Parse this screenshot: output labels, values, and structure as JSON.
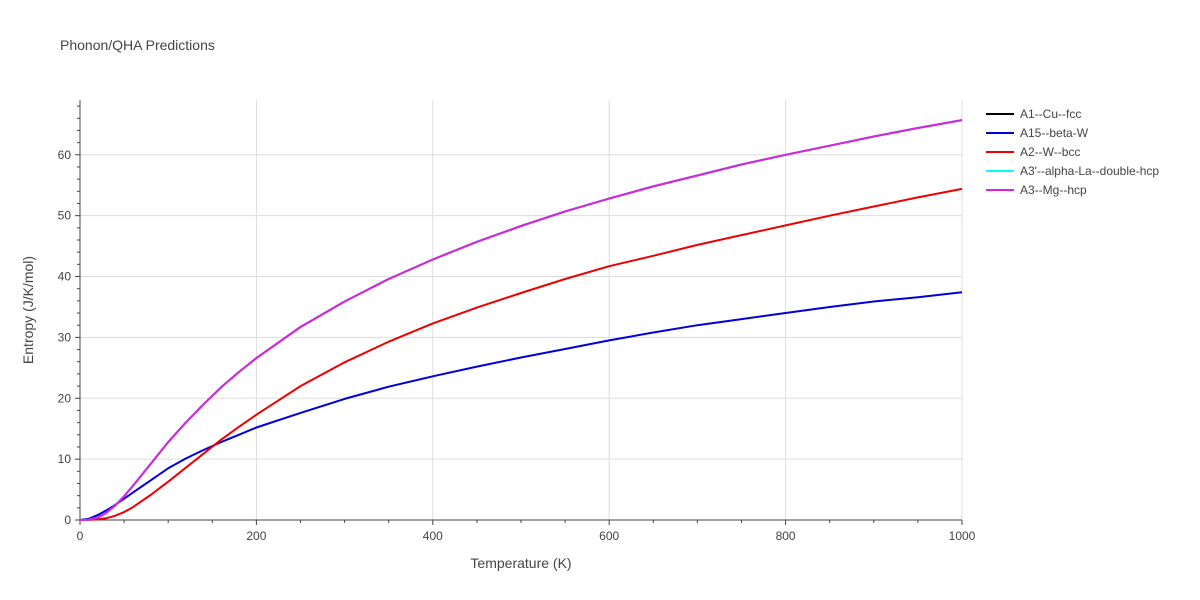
{
  "chart_data": {
    "type": "line",
    "title": "Phonon/QHA Predictions",
    "xlabel": "Temperature (K)",
    "ylabel": "Entropy (J/K/mol)",
    "xlim": [
      0,
      1000
    ],
    "ylim": [
      0,
      69
    ],
    "xticks": [
      0,
      200,
      400,
      600,
      800,
      1000
    ],
    "yticks": [
      0,
      10,
      20,
      30,
      40,
      50,
      60
    ],
    "grid": true,
    "legend_position": "right",
    "series": [
      {
        "name": "A1--Cu--fcc",
        "color": "#000000",
        "x": [
          0,
          10,
          20,
          30,
          40,
          50,
          60,
          70,
          80,
          90,
          100,
          120,
          140,
          160,
          180,
          200,
          250,
          300,
          350,
          400,
          450,
          500,
          550,
          600,
          650,
          700,
          750,
          800,
          850,
          900,
          950,
          1000
        ],
        "y": [
          0,
          0.05,
          0.4,
          1.2,
          2.4,
          3.9,
          5.6,
          7.4,
          9.2,
          11.0,
          12.8,
          16.0,
          19.0,
          21.8,
          24.3,
          26.6,
          31.7,
          35.9,
          39.6,
          42.8,
          45.7,
          48.3,
          50.7,
          52.8,
          54.8,
          56.6,
          58.4,
          60.0,
          61.5,
          63.0,
          64.4,
          65.7
        ]
      },
      {
        "name": "A15--beta-W",
        "color": "#0000dd",
        "x": [
          0,
          10,
          20,
          30,
          40,
          50,
          60,
          70,
          80,
          90,
          100,
          120,
          140,
          160,
          180,
          200,
          250,
          300,
          350,
          400,
          450,
          500,
          550,
          600,
          650,
          700,
          750,
          800,
          850,
          900,
          950,
          1000
        ],
        "y": [
          0,
          0.2,
          0.8,
          1.6,
          2.5,
          3.5,
          4.5,
          5.5,
          6.5,
          7.5,
          8.5,
          10.1,
          11.5,
          12.8,
          14.0,
          15.2,
          17.6,
          19.9,
          21.9,
          23.6,
          25.2,
          26.7,
          28.1,
          29.5,
          30.8,
          32.0,
          33.0,
          34.0,
          35.0,
          35.9,
          36.6,
          37.4
        ]
      },
      {
        "name": "A2--W--bcc",
        "color": "#ee0000",
        "x": [
          0,
          10,
          20,
          30,
          40,
          50,
          60,
          70,
          80,
          90,
          100,
          120,
          140,
          160,
          180,
          200,
          250,
          300,
          350,
          400,
          450,
          500,
          550,
          600,
          650,
          700,
          750,
          800,
          850,
          900,
          950,
          1000
        ],
        "y": [
          0,
          0.01,
          0.1,
          0.3,
          0.7,
          1.3,
          2.1,
          3.1,
          4.1,
          5.2,
          6.3,
          8.6,
          10.9,
          13.2,
          15.3,
          17.3,
          22.0,
          25.9,
          29.3,
          32.3,
          34.9,
          37.3,
          39.6,
          41.7,
          43.4,
          45.2,
          46.8,
          48.4,
          50.0,
          51.5,
          53.0,
          54.4
        ]
      },
      {
        "name": "A3'--alpha-La--double-hcp",
        "color": "#00ffff",
        "x": [
          0,
          10,
          20,
          30,
          40,
          50,
          60,
          70,
          80,
          90,
          100,
          120,
          140,
          160,
          180,
          200,
          250,
          300,
          350,
          400,
          450,
          500,
          550,
          600,
          650,
          700,
          750,
          800,
          850,
          900,
          950,
          1000
        ],
        "y": [
          0,
          0.05,
          0.4,
          1.2,
          2.4,
          3.9,
          5.6,
          7.4,
          9.2,
          11.0,
          12.8,
          16.0,
          19.0,
          21.8,
          24.3,
          26.6,
          31.7,
          35.9,
          39.6,
          42.8,
          45.7,
          48.3,
          50.7,
          52.8,
          54.8,
          56.6,
          58.4,
          60.0,
          61.5,
          63.0,
          64.4,
          65.7
        ]
      },
      {
        "name": "A3--Mg--hcp",
        "color": "#dd22dd",
        "x": [
          0,
          10,
          20,
          30,
          40,
          50,
          60,
          70,
          80,
          90,
          100,
          120,
          140,
          160,
          180,
          200,
          250,
          300,
          350,
          400,
          450,
          500,
          550,
          600,
          650,
          700,
          750,
          800,
          850,
          900,
          950,
          1000
        ],
        "y": [
          0,
          0.05,
          0.4,
          1.2,
          2.4,
          3.9,
          5.6,
          7.4,
          9.2,
          11.0,
          12.8,
          16.0,
          19.0,
          21.8,
          24.3,
          26.6,
          31.7,
          35.9,
          39.6,
          42.8,
          45.7,
          48.3,
          50.7,
          52.8,
          54.8,
          56.6,
          58.4,
          60.0,
          61.5,
          63.0,
          64.4,
          65.7
        ]
      }
    ]
  }
}
